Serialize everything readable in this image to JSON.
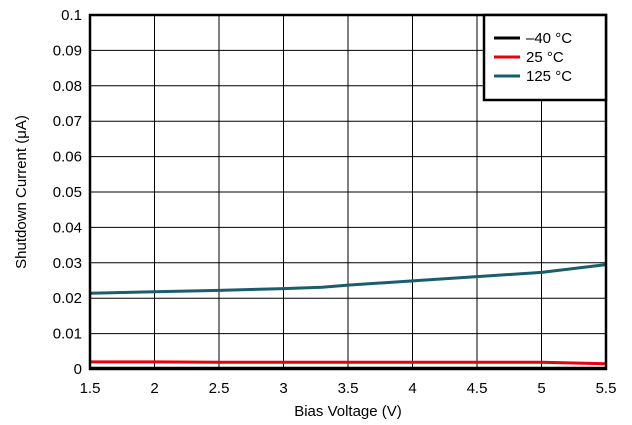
{
  "chart_data": {
    "type": "line",
    "title": "",
    "xlabel": "Bias Voltage (V)",
    "ylabel": "Shutdown Current (μA)",
    "xlim": [
      1.5,
      5.5
    ],
    "ylim": [
      0,
      0.1
    ],
    "xticks": [
      "1.5",
      "2",
      "2.5",
      "3",
      "3.5",
      "4",
      "4.5",
      "5",
      "5.5"
    ],
    "yticks": [
      "0",
      "0.01",
      "0.02",
      "0.03",
      "0.04",
      "0.05",
      "0.06",
      "0.07",
      "0.08",
      "0.09",
      "0.1"
    ],
    "grid": true,
    "legend_position": "top-right",
    "series": [
      {
        "name": "–40 °C",
        "color": "#000000",
        "x": [
          1.5,
          2,
          2.5,
          3,
          3.5,
          4,
          4.5,
          5,
          5.5
        ],
        "y": [
          0.0002,
          0.0002,
          0.0002,
          0.0002,
          0.0002,
          0.0002,
          0.0002,
          0.0002,
          0.0002
        ]
      },
      {
        "name": "25 °C",
        "color": "#e8000b",
        "x": [
          1.5,
          2,
          2.5,
          3,
          3.5,
          4,
          4.5,
          5,
          5.5
        ],
        "y": [
          0.002,
          0.002,
          0.0019,
          0.0019,
          0.0019,
          0.0019,
          0.0019,
          0.0019,
          0.0015
        ]
      },
      {
        "name": "125 °C",
        "color": "#1a5e6e",
        "x": [
          1.5,
          2,
          2.5,
          3,
          3.3,
          3.5,
          4,
          4.5,
          5,
          5.5
        ],
        "y": [
          0.0214,
          0.0218,
          0.0222,
          0.0227,
          0.0231,
          0.0237,
          0.0249,
          0.0261,
          0.0273,
          0.0295
        ]
      }
    ]
  }
}
